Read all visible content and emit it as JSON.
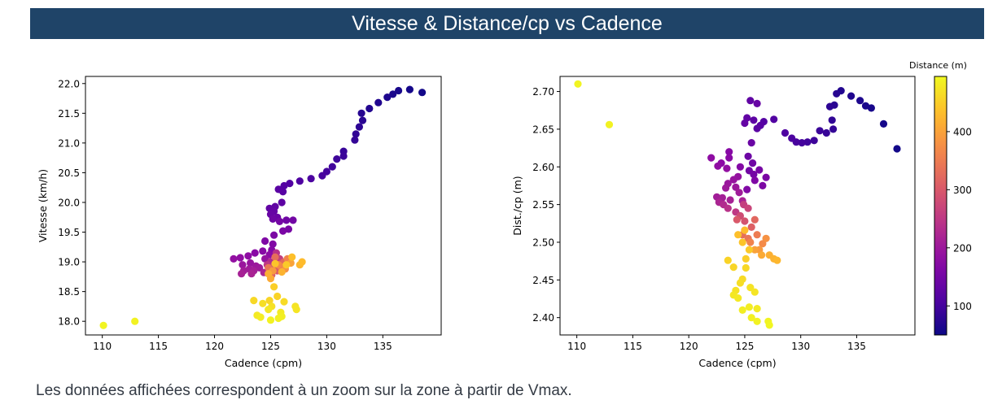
{
  "page": {
    "title": "Vitesse & Distance/cp vs Cadence",
    "caption": "Les données affichées correspondent à un zoom sur la zone à partir de Vmax."
  },
  "colorbar": {
    "label": "Distance (m)",
    "range": [
      50,
      495
    ],
    "ticks": [
      100,
      200,
      300,
      400
    ],
    "colormap": "plasma"
  },
  "chart_data": [
    {
      "type": "scatter",
      "xlabel": "Cadence (cpm)",
      "ylabel": "Vitesse (km/h)",
      "xlim": [
        108.5,
        140.2
      ],
      "ylim": [
        17.77,
        22.12
      ],
      "xticks": [
        110,
        115,
        120,
        125,
        130,
        135
      ],
      "yticks": [
        18.0,
        18.5,
        19.0,
        19.5,
        20.0,
        20.5,
        21.0,
        21.5,
        22.0
      ],
      "ytick_labels": [
        "18.0",
        "18.5",
        "19.0",
        "19.5",
        "20.0",
        "20.5",
        "21.0",
        "21.5",
        "22.0"
      ],
      "points": [
        [
          110.1,
          17.93,
          490
        ],
        [
          112.9,
          18.0,
          488
        ],
        [
          138.5,
          21.85,
          55
        ],
        [
          137.4,
          21.9,
          57
        ],
        [
          136.4,
          21.88,
          60
        ],
        [
          135.9,
          21.82,
          62
        ],
        [
          135.4,
          21.77,
          65
        ],
        [
          134.6,
          21.68,
          68
        ],
        [
          133.8,
          21.58,
          70
        ],
        [
          133.1,
          21.5,
          73
        ],
        [
          133.2,
          21.38,
          76
        ],
        [
          132.9,
          21.27,
          79
        ],
        [
          132.6,
          21.15,
          82
        ],
        [
          132.5,
          21.05,
          85
        ],
        [
          131.5,
          20.86,
          88
        ],
        [
          131.5,
          20.78,
          91
        ],
        [
          130.9,
          20.73,
          94
        ],
        [
          130.5,
          20.6,
          97
        ],
        [
          130.0,
          20.52,
          100
        ],
        [
          129.6,
          20.45,
          103
        ],
        [
          128.6,
          20.4,
          106
        ],
        [
          127.6,
          20.36,
          109
        ],
        [
          126.7,
          20.32,
          112
        ],
        [
          126.2,
          20.28,
          115
        ],
        [
          126.1,
          20.18,
          118
        ],
        [
          125.7,
          20.22,
          121
        ],
        [
          126.0,
          20.0,
          124
        ],
        [
          125.4,
          19.93,
          127
        ],
        [
          124.9,
          19.9,
          130
        ],
        [
          125.3,
          19.85,
          133
        ],
        [
          125.0,
          19.8,
          136
        ],
        [
          125.6,
          19.75,
          139
        ],
        [
          125.2,
          19.72,
          142
        ],
        [
          126.4,
          19.7,
          145
        ],
        [
          127.0,
          19.7,
          148
        ],
        [
          125.8,
          19.68,
          151
        ],
        [
          126.6,
          19.55,
          154
        ],
        [
          126.1,
          19.52,
          157
        ],
        [
          125.3,
          19.45,
          160
        ],
        [
          124.5,
          19.35,
          163
        ],
        [
          125.2,
          19.3,
          166
        ],
        [
          125.1,
          19.2,
          169
        ],
        [
          124.3,
          19.18,
          172
        ],
        [
          123.6,
          19.15,
          175
        ],
        [
          124.9,
          19.12,
          178
        ],
        [
          123.0,
          19.1,
          181
        ],
        [
          122.3,
          19.07,
          184
        ],
        [
          121.7,
          19.05,
          187
        ],
        [
          124.5,
          19.05,
          190
        ],
        [
          123.2,
          18.98,
          193
        ],
        [
          122.5,
          18.95,
          196
        ],
        [
          123.7,
          18.93,
          199
        ],
        [
          124.0,
          18.9,
          202
        ],
        [
          123.1,
          18.88,
          205
        ],
        [
          122.6,
          18.85,
          208
        ],
        [
          123.5,
          18.85,
          211
        ],
        [
          122.4,
          18.8,
          214
        ],
        [
          123.3,
          18.8,
          217
        ],
        [
          124.4,
          18.82,
          220
        ],
        [
          125.0,
          19.0,
          230
        ],
        [
          125.5,
          19.15,
          240
        ],
        [
          124.7,
          18.95,
          250
        ],
        [
          125.8,
          19.05,
          260
        ],
        [
          124.9,
          18.88,
          270
        ],
        [
          125.3,
          18.93,
          280
        ],
        [
          126.0,
          18.98,
          290
        ],
        [
          125.6,
          18.85,
          300
        ],
        [
          125.1,
          18.78,
          310
        ],
        [
          126.2,
          19.0,
          320
        ],
        [
          125.4,
          19.08,
          330
        ],
        [
          124.8,
          18.9,
          340
        ],
        [
          125.9,
          18.92,
          350
        ],
        [
          126.5,
          19.05,
          360
        ],
        [
          125.7,
          18.95,
          370
        ],
        [
          126.3,
          18.88,
          380
        ],
        [
          125.2,
          18.85,
          390
        ],
        [
          126.8,
          18.98,
          400
        ],
        [
          125.0,
          18.72,
          410
        ],
        [
          124.8,
          18.8,
          415
        ],
        [
          126.0,
          18.83,
          420
        ],
        [
          127.6,
          18.95,
          425
        ],
        [
          127.8,
          19.0,
          430
        ],
        [
          126.9,
          19.08,
          435
        ],
        [
          125.4,
          18.97,
          440
        ],
        [
          126.4,
          18.95,
          445
        ],
        [
          125.3,
          18.58,
          450
        ],
        [
          125.6,
          18.42,
          455
        ],
        [
          124.9,
          18.35,
          458
        ],
        [
          123.5,
          18.35,
          461
        ],
        [
          126.2,
          18.33,
          464
        ],
        [
          124.3,
          18.3,
          467
        ],
        [
          125.1,
          18.25,
          470
        ],
        [
          127.2,
          18.25,
          472
        ],
        [
          127.3,
          18.2,
          474
        ],
        [
          124.8,
          18.2,
          476
        ],
        [
          123.8,
          18.1,
          478
        ],
        [
          125.9,
          18.15,
          480
        ],
        [
          124.1,
          18.07,
          482
        ],
        [
          126.0,
          18.08,
          484
        ],
        [
          125.7,
          18.05,
          486
        ],
        [
          125.0,
          18.02,
          488
        ]
      ]
    },
    {
      "type": "scatter",
      "xlabel": "Cadence (cpm)",
      "ylabel": "Dist./cp (m)",
      "xlim": [
        108.5,
        140.2
      ],
      "ylim": [
        2.377,
        2.72
      ],
      "xticks": [
        110,
        115,
        120,
        125,
        130,
        135
      ],
      "yticks": [
        2.4,
        2.45,
        2.5,
        2.55,
        2.6,
        2.65,
        2.7
      ],
      "ytick_labels": [
        "2.40",
        "2.45",
        "2.50",
        "2.55",
        "2.60",
        "2.65",
        "2.70"
      ],
      "points": [
        [
          110.1,
          2.71,
          490
        ],
        [
          112.9,
          2.656,
          488
        ],
        [
          138.6,
          2.624,
          55
        ],
        [
          137.4,
          2.657,
          57
        ],
        [
          136.3,
          2.678,
          60
        ],
        [
          135.8,
          2.681,
          62
        ],
        [
          135.3,
          2.688,
          65
        ],
        [
          134.5,
          2.694,
          68
        ],
        [
          133.6,
          2.701,
          70
        ],
        [
          133.2,
          2.697,
          73
        ],
        [
          133.0,
          2.682,
          76
        ],
        [
          132.6,
          2.68,
          79
        ],
        [
          132.8,
          2.662,
          82
        ],
        [
          132.9,
          2.65,
          85
        ],
        [
          132.3,
          2.645,
          88
        ],
        [
          131.7,
          2.648,
          91
        ],
        [
          131.2,
          2.635,
          94
        ],
        [
          130.6,
          2.633,
          97
        ],
        [
          130.1,
          2.632,
          100
        ],
        [
          129.6,
          2.633,
          103
        ],
        [
          129.2,
          2.638,
          106
        ],
        [
          128.6,
          2.645,
          109
        ],
        [
          127.6,
          2.663,
          112
        ],
        [
          126.7,
          2.66,
          115
        ],
        [
          126.4,
          2.655,
          118
        ],
        [
          126.1,
          2.651,
          121
        ],
        [
          125.8,
          2.662,
          124
        ],
        [
          125.5,
          2.688,
          127
        ],
        [
          125.2,
          2.665,
          130
        ],
        [
          125.0,
          2.658,
          133
        ],
        [
          126.1,
          2.684,
          136
        ],
        [
          125.6,
          2.632,
          139
        ],
        [
          125.3,
          2.614,
          142
        ],
        [
          125.7,
          2.605,
          145
        ],
        [
          125.4,
          2.595,
          148
        ],
        [
          125.8,
          2.59,
          151
        ],
        [
          126.3,
          2.596,
          154
        ],
        [
          126.9,
          2.586,
          157
        ],
        [
          126.6,
          2.575,
          160
        ],
        [
          125.9,
          2.582,
          163
        ],
        [
          125.2,
          2.57,
          166
        ],
        [
          124.6,
          2.6,
          169
        ],
        [
          123.6,
          2.62,
          172
        ],
        [
          123.6,
          2.612,
          175
        ],
        [
          122.9,
          2.605,
          178
        ],
        [
          122.0,
          2.612,
          181
        ],
        [
          122.6,
          2.601,
          184
        ],
        [
          123.4,
          2.598,
          187
        ],
        [
          124.4,
          2.587,
          190
        ],
        [
          124.0,
          2.583,
          193
        ],
        [
          123.5,
          2.578,
          196
        ],
        [
          124.2,
          2.573,
          199
        ],
        [
          123.3,
          2.572,
          202
        ],
        [
          124.5,
          2.566,
          205
        ],
        [
          122.5,
          2.56,
          208
        ],
        [
          123.0,
          2.559,
          211
        ],
        [
          123.7,
          2.556,
          214
        ],
        [
          124.8,
          2.555,
          217
        ],
        [
          122.7,
          2.553,
          220
        ],
        [
          123.1,
          2.55,
          230
        ],
        [
          123.5,
          2.545,
          240
        ],
        [
          124.2,
          2.54,
          250
        ],
        [
          124.9,
          2.55,
          260
        ],
        [
          125.3,
          2.545,
          270
        ],
        [
          124.6,
          2.535,
          280
        ],
        [
          125.0,
          2.528,
          290
        ],
        [
          124.3,
          2.53,
          300
        ],
        [
          125.6,
          2.52,
          310
        ],
        [
          125.9,
          2.53,
          320
        ],
        [
          124.8,
          2.51,
          330
        ],
        [
          125.3,
          2.505,
          340
        ],
        [
          126.1,
          2.51,
          350
        ],
        [
          125.5,
          2.5,
          360
        ],
        [
          126.6,
          2.498,
          370
        ],
        [
          126.9,
          2.505,
          380
        ],
        [
          126.3,
          2.49,
          390
        ],
        [
          125.9,
          2.49,
          400
        ],
        [
          126.5,
          2.483,
          410
        ],
        [
          127.2,
          2.483,
          415
        ],
        [
          127.6,
          2.478,
          420
        ],
        [
          127.9,
          2.476,
          425
        ],
        [
          125.0,
          2.516,
          430
        ],
        [
          124.4,
          2.51,
          435
        ],
        [
          124.8,
          2.5,
          440
        ],
        [
          125.4,
          2.49,
          445
        ],
        [
          125.1,
          2.478,
          450
        ],
        [
          123.5,
          2.476,
          455
        ],
        [
          124.0,
          2.467,
          458
        ],
        [
          125.1,
          2.466,
          461
        ],
        [
          124.8,
          2.451,
          464
        ],
        [
          124.6,
          2.446,
          467
        ],
        [
          124.2,
          2.436,
          470
        ],
        [
          125.5,
          2.44,
          472
        ],
        [
          125.9,
          2.434,
          474
        ],
        [
          124.0,
          2.43,
          476
        ],
        [
          124.4,
          2.426,
          478
        ],
        [
          126.1,
          2.412,
          480
        ],
        [
          125.4,
          2.414,
          482
        ],
        [
          124.8,
          2.41,
          484
        ],
        [
          125.6,
          2.4,
          486
        ],
        [
          126.1,
          2.395,
          488
        ],
        [
          127.1,
          2.395,
          490
        ],
        [
          127.2,
          2.39,
          492
        ]
      ]
    }
  ]
}
